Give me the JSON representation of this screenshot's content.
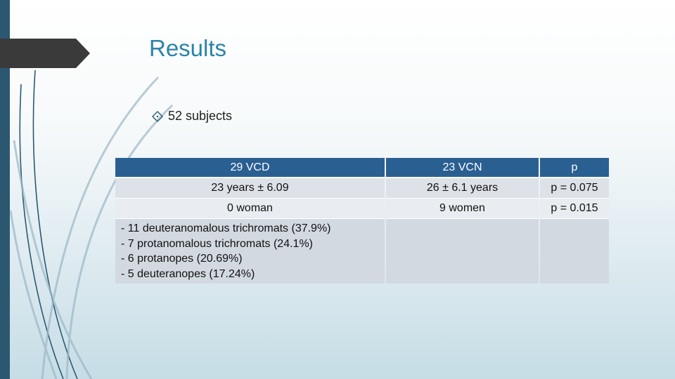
{
  "slide": {
    "title": "Results",
    "bullet": "52 subjects"
  },
  "table": {
    "headers": [
      "29 VCD",
      "23 VCN",
      "p"
    ],
    "rows": [
      [
        "23 years ± 6.09",
        "26 ± 6.1 years",
        "p = 0.075"
      ],
      [
        "0 woman",
        "9 women",
        "p = 0.015"
      ]
    ],
    "types": [
      "- 11 deuteranomalous trichromats (37.9%)",
      "- 7 protanomalous trichromats (24.1%)",
      "- 6 protanopes (20.69%)",
      "- 5 deuteranopes (17.24%)"
    ]
  },
  "colors": {
    "accent_title": "#2b84a8",
    "header_bg": "#2a5f92",
    "left_bar": "#2c5771"
  }
}
